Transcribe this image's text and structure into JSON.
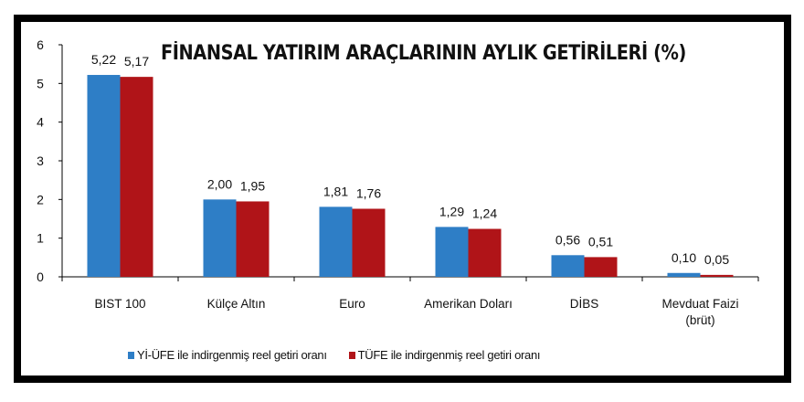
{
  "chart_data": {
    "type": "bar",
    "title": "FİNANSAL YATIRIM ARAÇLARININ AYLIK GETİRİLERİ (%)",
    "xlabel": "",
    "ylabel": "",
    "ylim": [
      0,
      6
    ],
    "yticks": [
      "0",
      "1",
      "2",
      "3",
      "4",
      "5",
      "6"
    ],
    "grid": false,
    "legend_position": "bottom",
    "categories": [
      "BIST 100",
      "Külçe Altın",
      "Euro",
      "Amerikan Doları",
      "DİBS",
      "Mevduat Faizi (brüt)"
    ],
    "category_lines": [
      [
        "BIST 100"
      ],
      [
        "Külçe Altın"
      ],
      [
        "Euro"
      ],
      [
        "Amerikan Doları"
      ],
      [
        "DİBS"
      ],
      [
        "Mevduat Faizi",
        "(brüt)"
      ]
    ],
    "series": [
      {
        "name": "Yİ-ÜFE ile indirgenmiş reel getiri oranı",
        "color": "#2e7ec6",
        "values": [
          5.22,
          2.0,
          1.81,
          1.29,
          0.56,
          0.1
        ],
        "labels": [
          "5,22",
          "2,00",
          "1,81",
          "1,29",
          "0,56",
          "0,10"
        ]
      },
      {
        "name": "TÜFE ile indirgenmiş reel getiri oranı",
        "color": "#b01418",
        "values": [
          5.17,
          1.95,
          1.76,
          1.24,
          0.51,
          0.05
        ],
        "labels": [
          "5,17",
          "1,95",
          "1,76",
          "1,24",
          "0,51",
          "0,05"
        ]
      }
    ]
  },
  "legend": {
    "series_1": "Yİ-ÜFE ile indirgenmiş reel getiri oranı",
    "series_2": "TÜFE ile indirgenmiş reel getiri oranı"
  }
}
